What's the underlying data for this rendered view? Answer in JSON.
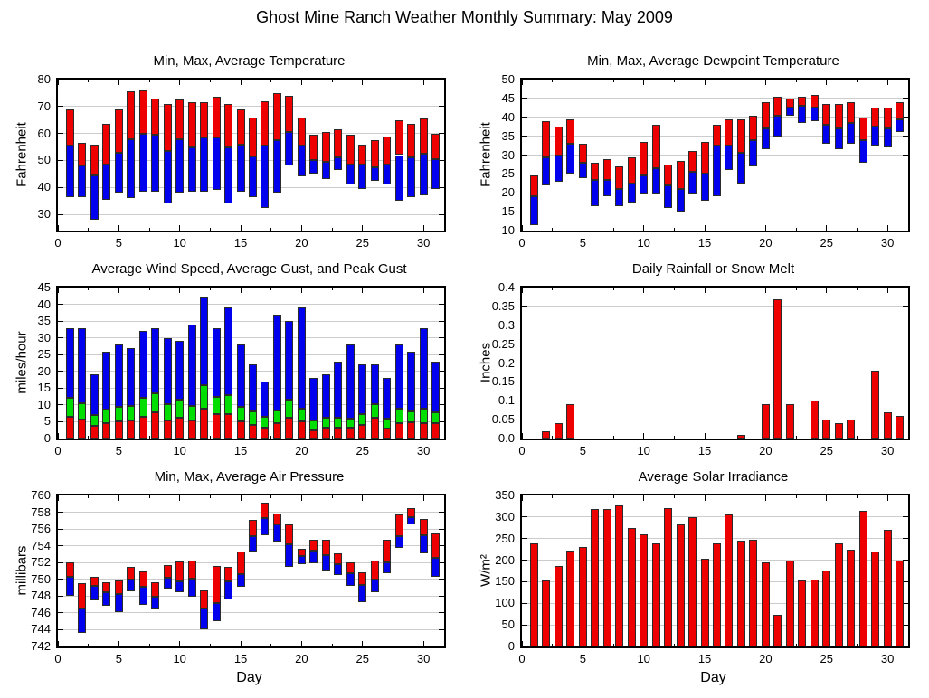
{
  "page_title": "Ghost Mine Ranch Weather Monthly Summary: May 2009",
  "days": [
    1,
    2,
    3,
    4,
    5,
    6,
    7,
    8,
    9,
    10,
    11,
    12,
    13,
    14,
    15,
    16,
    17,
    18,
    19,
    20,
    21,
    22,
    23,
    24,
    25,
    26,
    27,
    28,
    29,
    30,
    31
  ],
  "colors": {
    "red": "#ee0000",
    "green": "#00dd00",
    "blue": "#0000ee",
    "grid": "#cccccc",
    "frame": "#000000",
    "bar_outline": "#2b2b2b"
  },
  "chart_data": [
    {
      "id": "temperature",
      "type": "bar",
      "variant": "range",
      "title": "Min, Max, Average Temperature",
      "ylabel": "Fahrenheit",
      "xlabel": "",
      "ylim": [
        24,
        80
      ],
      "yticks": [
        30,
        40,
        50,
        60,
        70,
        80
      ],
      "ytick_labels": [
        "30",
        "40",
        "50",
        "60",
        "70",
        "80"
      ],
      "xlim": [
        0,
        31.7
      ],
      "xticks": [
        0,
        5,
        10,
        15,
        20,
        25,
        30
      ],
      "grid": true,
      "legend": "none",
      "categories": [
        1,
        2,
        3,
        4,
        5,
        6,
        7,
        8,
        9,
        10,
        11,
        12,
        13,
        14,
        15,
        16,
        17,
        18,
        19,
        20,
        21,
        22,
        23,
        24,
        25,
        26,
        27,
        28,
        29,
        30,
        31
      ],
      "lower_color": "#0000ee",
      "upper_color": "#ee0000",
      "series": [
        {
          "name": "min",
          "values": [
            36.5,
            36.5,
            28,
            35.5,
            38,
            36,
            38.5,
            38.5,
            34,
            38,
            38.5,
            38.5,
            39,
            34,
            38.5,
            36.5,
            32.5,
            38,
            48,
            44,
            45,
            43,
            46.5,
            41,
            39.5,
            42.5,
            41,
            35,
            36.5,
            37,
            39.5
          ]
        },
        {
          "name": "average",
          "values": [
            55.5,
            48,
            44.5,
            48.5,
            53,
            58,
            60,
            59.5,
            53.5,
            58,
            55,
            58.5,
            58.5,
            55,
            56,
            51.5,
            55.5,
            57.5,
            60.5,
            55.5,
            50,
            49.5,
            51,
            48.5,
            48.5,
            47.5,
            48.5,
            52,
            51,
            52.5,
            50.5
          ]
        },
        {
          "name": "max",
          "values": [
            69,
            56.5,
            56,
            63.5,
            69,
            75.5,
            76,
            73,
            71,
            72.5,
            71.5,
            71.5,
            73.5,
            71,
            69,
            66,
            72,
            75,
            74,
            66,
            59.5,
            60.5,
            61.5,
            59.5,
            56,
            57.5,
            59,
            65,
            63.5,
            65.5,
            60
          ]
        }
      ]
    },
    {
      "id": "dewpoint",
      "type": "bar",
      "variant": "range",
      "title": "Min, Max, Average Dewpoint Temperature",
      "ylabel": "Fahrenheit",
      "xlabel": "",
      "ylim": [
        10,
        50
      ],
      "yticks": [
        10,
        15,
        20,
        25,
        30,
        35,
        40,
        45,
        50
      ],
      "ytick_labels": [
        "10",
        "15",
        "20",
        "25",
        "30",
        "35",
        "40",
        "45",
        "50"
      ],
      "xlim": [
        0,
        31.7
      ],
      "xticks": [
        0,
        5,
        10,
        15,
        20,
        25,
        30
      ],
      "grid": true,
      "legend": "none",
      "categories": [
        1,
        2,
        3,
        4,
        5,
        6,
        7,
        8,
        9,
        10,
        11,
        12,
        13,
        14,
        15,
        16,
        17,
        18,
        19,
        20,
        21,
        22,
        23,
        24,
        25,
        26,
        27,
        28,
        29,
        30,
        31
      ],
      "lower_color": "#0000ee",
      "upper_color": "#ee0000",
      "series": [
        {
          "name": "min",
          "values": [
            11.5,
            22,
            23,
            25,
            24,
            16.5,
            19,
            16.5,
            17.5,
            19.5,
            19.5,
            16,
            15,
            19.5,
            18,
            19,
            26,
            22.5,
            27,
            31.5,
            35,
            40.5,
            38.5,
            39,
            33,
            31.5,
            33,
            28,
            32.5,
            32,
            36
          ]
        },
        {
          "name": "average",
          "values": [
            19,
            29.5,
            30,
            33,
            28,
            23.5,
            23.5,
            21,
            22.5,
            24.5,
            26.5,
            22,
            21,
            25.5,
            25,
            32.5,
            32.5,
            30.5,
            34,
            37,
            40.5,
            42.5,
            43,
            42.5,
            38,
            37,
            38.5,
            34,
            37.5,
            37,
            39.5
          ]
        },
        {
          "name": "max",
          "values": [
            24.5,
            39,
            37.5,
            39.5,
            33,
            28,
            29,
            27,
            29.5,
            33.5,
            38,
            27.5,
            28.5,
            31,
            33.5,
            38,
            39.5,
            39.5,
            40.5,
            44,
            45.5,
            45,
            45.5,
            46,
            43.5,
            43.5,
            44,
            40,
            42.5,
            42.5,
            44
          ]
        }
      ]
    },
    {
      "id": "wind",
      "type": "bar",
      "variant": "stacked",
      "title": "Average Wind Speed, Average Gust, and Peak Gust",
      "ylabel": "miles/hour",
      "xlabel": "",
      "ylim": [
        0,
        45
      ],
      "yticks": [
        0,
        5,
        10,
        15,
        20,
        25,
        30,
        35,
        40,
        45
      ],
      "ytick_labels": [
        "0",
        "5",
        "10",
        "15",
        "20",
        "25",
        "30",
        "35",
        "40",
        "45"
      ],
      "xlim": [
        0,
        31.7
      ],
      "xticks": [
        0,
        5,
        10,
        15,
        20,
        25,
        30
      ],
      "grid": true,
      "legend": "none",
      "categories": [
        1,
        2,
        3,
        4,
        5,
        6,
        7,
        8,
        9,
        10,
        11,
        12,
        13,
        14,
        15,
        16,
        17,
        18,
        19,
        20,
        21,
        22,
        23,
        24,
        25,
        26,
        27,
        28,
        29,
        30,
        31
      ],
      "series": [
        {
          "name": "average-wind-speed",
          "color": "#ee0000",
          "values": [
            6.5,
            5.7,
            3.8,
            4.5,
            5,
            5.3,
            6.5,
            7.8,
            5.5,
            6.3,
            5.3,
            9,
            7.2,
            7.2,
            5,
            4,
            3.2,
            4.5,
            6.3,
            5,
            2.5,
            3.2,
            3.2,
            3.3,
            4,
            6.2,
            3,
            4.5,
            4.8,
            4.5,
            4.7
          ]
        },
        {
          "name": "average-gust",
          "color": "#00dd00",
          "values": [
            12,
            10.5,
            7,
            8.5,
            9.5,
            9.8,
            12,
            13.5,
            10.3,
            11.5,
            9.8,
            16,
            12.5,
            13,
            9.5,
            8,
            6.5,
            8.3,
            11.7,
            9,
            5.5,
            6.3,
            6.3,
            6,
            7.3,
            10.3,
            5.8,
            8.8,
            8.2,
            8.8,
            7.8
          ]
        },
        {
          "name": "peak-gust",
          "color": "#0000ee",
          "values": [
            33,
            33,
            19,
            26,
            28,
            27,
            32,
            33,
            30,
            29,
            34,
            42,
            33,
            39,
            28,
            22,
            17,
            37,
            35,
            39,
            18,
            19,
            23,
            28,
            22,
            22,
            18,
            28,
            26,
            33,
            23
          ]
        }
      ]
    },
    {
      "id": "rainfall",
      "type": "bar",
      "variant": "simple",
      "title": "Daily Rainfall or Snow Melt",
      "ylabel": "Inches",
      "xlabel": "",
      "ylim": [
        0,
        0.4
      ],
      "yticks": [
        0,
        0.05,
        0.1,
        0.15,
        0.2,
        0.25,
        0.3,
        0.35,
        0.4
      ],
      "ytick_labels": [
        "0.0",
        "0.05",
        "0.1",
        "0.15",
        "0.2",
        "0.25",
        "0.3",
        "0.35",
        "0.4"
      ],
      "xlim": [
        0,
        31.7
      ],
      "xticks": [
        0,
        5,
        10,
        15,
        20,
        25,
        30
      ],
      "grid": true,
      "legend": "none",
      "categories": [
        1,
        2,
        3,
        4,
        5,
        6,
        7,
        8,
        9,
        10,
        11,
        12,
        13,
        14,
        15,
        16,
        17,
        18,
        19,
        20,
        21,
        22,
        23,
        24,
        25,
        26,
        27,
        28,
        29,
        30,
        31
      ],
      "series": [
        {
          "name": "rainfall",
          "color": "#ee0000",
          "values": [
            0,
            0.02,
            0.04,
            0.09,
            0,
            0,
            0,
            0,
            0,
            0,
            0,
            0,
            0,
            0,
            0,
            0,
            0,
            0.01,
            0,
            0.09,
            0.37,
            0.09,
            0,
            0.1,
            0.05,
            0.04,
            0.05,
            0,
            0.18,
            0.07,
            0.06
          ]
        }
      ]
    },
    {
      "id": "pressure",
      "type": "bar",
      "variant": "range",
      "title": "Min, Max, Average Air Pressure",
      "ylabel": "millibars",
      "xlabel": "Day",
      "ylim": [
        742,
        760
      ],
      "yticks": [
        742,
        744,
        746,
        748,
        750,
        752,
        754,
        756,
        758,
        760
      ],
      "ytick_labels": [
        "742",
        "744",
        "746",
        "748",
        "750",
        "752",
        "754",
        "756",
        "758",
        "760"
      ],
      "xlim": [
        0,
        31.7
      ],
      "xticks": [
        0,
        5,
        10,
        15,
        20,
        25,
        30
      ],
      "grid": true,
      "legend": "none",
      "categories": [
        1,
        2,
        3,
        4,
        5,
        6,
        7,
        8,
        9,
        10,
        11,
        12,
        13,
        14,
        15,
        16,
        17,
        18,
        19,
        20,
        21,
        22,
        23,
        24,
        25,
        26,
        27,
        28,
        29,
        30,
        31
      ],
      "lower_color": "#0000ee",
      "upper_color": "#ee0000",
      "series": [
        {
          "name": "min",
          "values": [
            748,
            743.6,
            747.5,
            746.8,
            746.1,
            748.6,
            747,
            746.4,
            748.9,
            748.5,
            747.9,
            744.1,
            745,
            747.6,
            749.1,
            753.3,
            755.3,
            754.5,
            751.5,
            751.8,
            751.9,
            751,
            750.5,
            749.2,
            747.3,
            748.5,
            750.7,
            753.7,
            756.6,
            753.1,
            750.3
          ]
        },
        {
          "name": "average",
          "values": [
            750.3,
            746.5,
            749.2,
            748.5,
            748.3,
            750,
            749.1,
            747.9,
            750.2,
            749.8,
            750.1,
            746.5,
            747.2,
            749.8,
            750.6,
            755.2,
            757.3,
            756.6,
            754.2,
            752.8,
            753.4,
            752.9,
            751.8,
            750.7,
            749.3,
            750,
            752,
            755.1,
            757.4,
            755.3,
            752.6
          ]
        },
        {
          "name": "max",
          "values": [
            752,
            749.5,
            750.3,
            749.7,
            749.9,
            751.5,
            751,
            749.7,
            751.7,
            752.1,
            752.2,
            748.7,
            751.6,
            751.5,
            753.3,
            757.1,
            759.1,
            757.8,
            756.5,
            753.6,
            754.7,
            754.7,
            753.1,
            752,
            750.8,
            752.2,
            754.7,
            757.7,
            758.5,
            757.2,
            755.5
          ]
        }
      ]
    },
    {
      "id": "solar",
      "type": "bar",
      "variant": "simple",
      "title": "Average Solar Irradiance",
      "ylabel": "W/m²",
      "xlabel": "Day",
      "ylim": [
        0,
        350
      ],
      "yticks": [
        0,
        50,
        100,
        150,
        200,
        250,
        300,
        350
      ],
      "ytick_labels": [
        "0",
        "50",
        "100",
        "150",
        "200",
        "250",
        "300",
        "350"
      ],
      "xlim": [
        0,
        31.7
      ],
      "xticks": [
        0,
        5,
        10,
        15,
        20,
        25,
        30
      ],
      "grid": true,
      "legend": "none",
      "categories": [
        1,
        2,
        3,
        4,
        5,
        6,
        7,
        8,
        9,
        10,
        11,
        12,
        13,
        14,
        15,
        16,
        17,
        18,
        19,
        20,
        21,
        22,
        23,
        24,
        25,
        26,
        27,
        28,
        29,
        30,
        31
      ],
      "series": [
        {
          "name": "average-solar-irradiance",
          "color": "#ee0000",
          "values": [
            238,
            154,
            187,
            223,
            230,
            318,
            318,
            326,
            274,
            260,
            239,
            320,
            282,
            300,
            203,
            238,
            306,
            246,
            248,
            195,
            73,
            200,
            154,
            156,
            177,
            238,
            224,
            314,
            221,
            271,
            200
          ]
        }
      ]
    }
  ]
}
